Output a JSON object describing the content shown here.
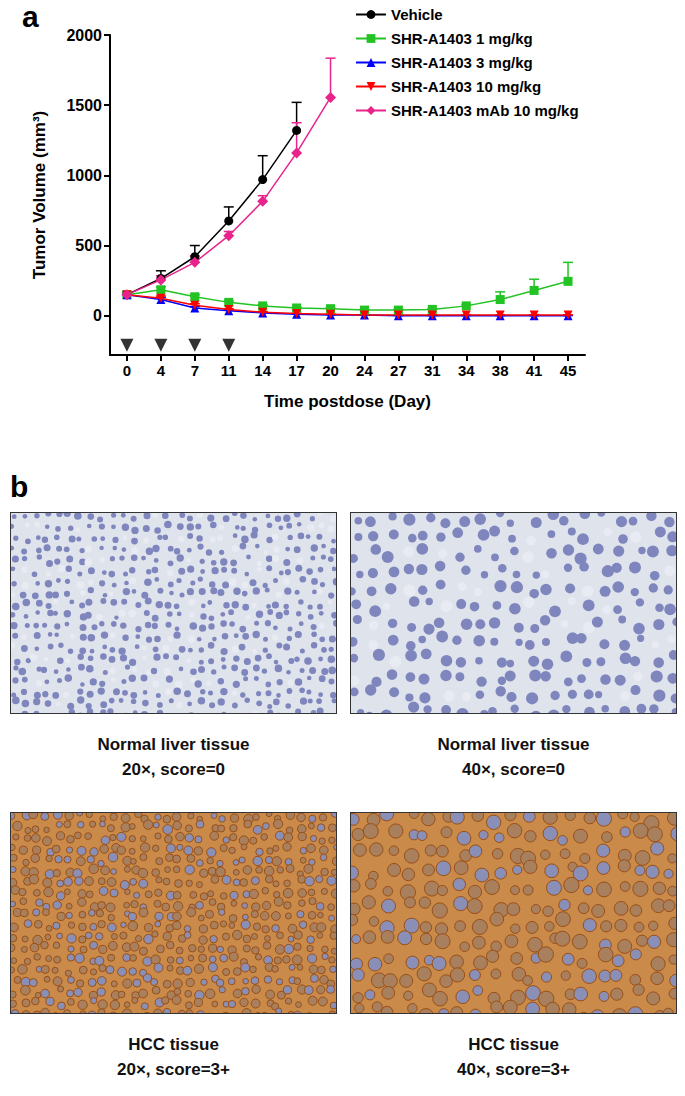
{
  "chart_data": {
    "type": "line",
    "panel_label": "a",
    "x_label": "Time postdose (Day)",
    "y_label": "Tumor Volume (mm³)",
    "categories": [
      0,
      4,
      7,
      11,
      14,
      17,
      20,
      24,
      27,
      31,
      34,
      38,
      41,
      45
    ],
    "ylim": [
      -280,
      2000
    ],
    "yticks": [
      0,
      500,
      1000,
      1500,
      2000
    ],
    "grid": false,
    "legend": "top-right",
    "dose_days": [
      0,
      4,
      7,
      11
    ],
    "series": [
      {
        "name": "Vehicle",
        "color": "#000000",
        "marker": "circle",
        "values": [
          150,
          265,
          420,
          675,
          970,
          1320,
          null,
          null,
          null,
          null,
          null,
          null,
          null,
          null
        ],
        "errors": [
          20,
          55,
          80,
          100,
          170,
          200,
          null,
          null,
          null,
          null,
          null,
          null,
          null,
          null
        ]
      },
      {
        "name": "SHR-A1403 1 mg/kg",
        "color": "#22c322",
        "marker": "square",
        "values": [
          150,
          185,
          135,
          95,
          70,
          55,
          50,
          40,
          40,
          45,
          70,
          115,
          180,
          245
        ],
        "errors": [
          15,
          20,
          15,
          10,
          8,
          5,
          5,
          5,
          5,
          5,
          10,
          55,
          80,
          135
        ]
      },
      {
        "name": "SHR-A1403 3 mg/kg",
        "color": "#0000ff",
        "marker": "triangle",
        "values": [
          150,
          115,
          55,
          35,
          20,
          10,
          5,
          5,
          0,
          0,
          0,
          0,
          0,
          0
        ],
        "errors": [
          15,
          15,
          10,
          5,
          5,
          3,
          2,
          2,
          1,
          1,
          1,
          1,
          1,
          1
        ]
      },
      {
        "name": "SHR-A1403 10 mg/kg",
        "color": "#ff0000",
        "marker": "triangle-down",
        "values": [
          150,
          125,
          75,
          45,
          25,
          15,
          10,
          5,
          5,
          5,
          5,
          5,
          5,
          5
        ],
        "errors": [
          15,
          15,
          10,
          5,
          5,
          3,
          2,
          2,
          1,
          1,
          1,
          1,
          1,
          1
        ]
      },
      {
        "name": "SHR-A1403 mAb 10 mg/kg",
        "color": "#e8248c",
        "marker": "diamond",
        "values": [
          150,
          255,
          380,
          570,
          815,
          1160,
          1555,
          null,
          null,
          null,
          null,
          null,
          null,
          null
        ],
        "errors": [
          15,
          30,
          45,
          30,
          40,
          215,
          280,
          null,
          null,
          null,
          null,
          null,
          null,
          null
        ]
      }
    ]
  },
  "panel_b": {
    "label": "b",
    "images": [
      {
        "caption": [
          "Normal liver tissue",
          "20×, score=0"
        ]
      },
      {
        "caption": [
          "Normal liver tissue",
          "40×, score=0"
        ]
      },
      {
        "caption": [
          "HCC tissue",
          "20×, score=3+"
        ]
      },
      {
        "caption": [
          "HCC tissue",
          "40×, score=3+"
        ]
      }
    ]
  }
}
